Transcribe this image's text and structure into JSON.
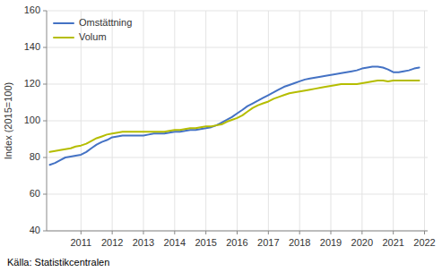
{
  "chart_data": {
    "type": "line",
    "y_label": "Index (2015=100)",
    "annotations": [
      "Källa: Statistikcentralen"
    ],
    "x": [
      2010.0,
      2010.17,
      2010.33,
      2010.5,
      2010.67,
      2010.83,
      2011.0,
      2011.17,
      2011.33,
      2011.5,
      2011.67,
      2011.83,
      2012.0,
      2012.17,
      2012.33,
      2012.5,
      2012.67,
      2012.83,
      2013.0,
      2013.17,
      2013.33,
      2013.5,
      2013.67,
      2013.83,
      2014.0,
      2014.17,
      2014.33,
      2014.5,
      2014.67,
      2014.83,
      2015.0,
      2015.17,
      2015.33,
      2015.5,
      2015.67,
      2015.83,
      2016.0,
      2016.17,
      2016.33,
      2016.5,
      2016.67,
      2016.83,
      2017.0,
      2017.17,
      2017.33,
      2017.5,
      2017.67,
      2017.83,
      2018.0,
      2018.17,
      2018.33,
      2018.5,
      2018.67,
      2018.83,
      2019.0,
      2019.17,
      2019.33,
      2019.5,
      2019.67,
      2019.83,
      2020.0,
      2020.17,
      2020.33,
      2020.5,
      2020.67,
      2020.83,
      2021.0,
      2021.17,
      2021.33,
      2021.5,
      2021.67,
      2021.83
    ],
    "series": [
      {
        "name": "Omstättning",
        "color": "#4472c4",
        "values": [
          76.0,
          77.0,
          78.5,
          80.0,
          80.5,
          81.0,
          81.5,
          83.0,
          85.0,
          87.0,
          88.5,
          89.5,
          91.0,
          91.5,
          92.0,
          92.0,
          92.0,
          92.0,
          92.0,
          92.5,
          93.0,
          93.0,
          93.0,
          93.5,
          94.0,
          94.0,
          94.5,
          95.0,
          95.0,
          95.5,
          96.0,
          96.5,
          97.5,
          99.0,
          100.5,
          102.0,
          104.0,
          106.0,
          108.0,
          109.5,
          111.0,
          112.5,
          114.0,
          115.5,
          117.0,
          118.5,
          119.5,
          120.5,
          121.5,
          122.5,
          123.0,
          123.5,
          124.0,
          124.5,
          125.0,
          125.5,
          126.0,
          126.5,
          127.0,
          127.5,
          128.5,
          129.0,
          129.5,
          129.5,
          129.0,
          128.0,
          126.5,
          126.5,
          127.0,
          127.5,
          128.5,
          129.0
        ]
      },
      {
        "name": "Volum",
        "color": "#b5bd00",
        "values": [
          83.0,
          83.5,
          84.0,
          84.5,
          85.0,
          86.0,
          86.5,
          87.5,
          89.0,
          90.5,
          91.5,
          92.5,
          93.0,
          93.5,
          94.0,
          94.0,
          94.0,
          94.0,
          94.0,
          94.0,
          94.0,
          94.0,
          94.0,
          94.5,
          95.0,
          95.0,
          95.5,
          96.0,
          96.0,
          96.5,
          97.0,
          97.0,
          97.5,
          98.0,
          99.5,
          100.5,
          101.5,
          103.0,
          105.0,
          107.0,
          108.5,
          109.5,
          110.5,
          112.0,
          113.0,
          114.0,
          115.0,
          115.5,
          116.0,
          116.5,
          117.0,
          117.5,
          118.0,
          118.5,
          119.0,
          119.5,
          120.0,
          120.0,
          120.0,
          120.0,
          120.5,
          121.0,
          121.5,
          122.0,
          122.0,
          121.5,
          122.0,
          122.0,
          122.0,
          122.0,
          122.0,
          122.0
        ]
      }
    ],
    "xlim": [
      2009.9,
      2022.1
    ],
    "xticks": [
      2011,
      2012,
      2013,
      2014,
      2015,
      2016,
      2017,
      2018,
      2019,
      2020,
      2021,
      2022
    ],
    "ylim": [
      40,
      160
    ],
    "yticks": [
      40,
      60,
      80,
      100,
      120,
      140,
      160
    ],
    "grid": true,
    "legend": "upper left"
  }
}
